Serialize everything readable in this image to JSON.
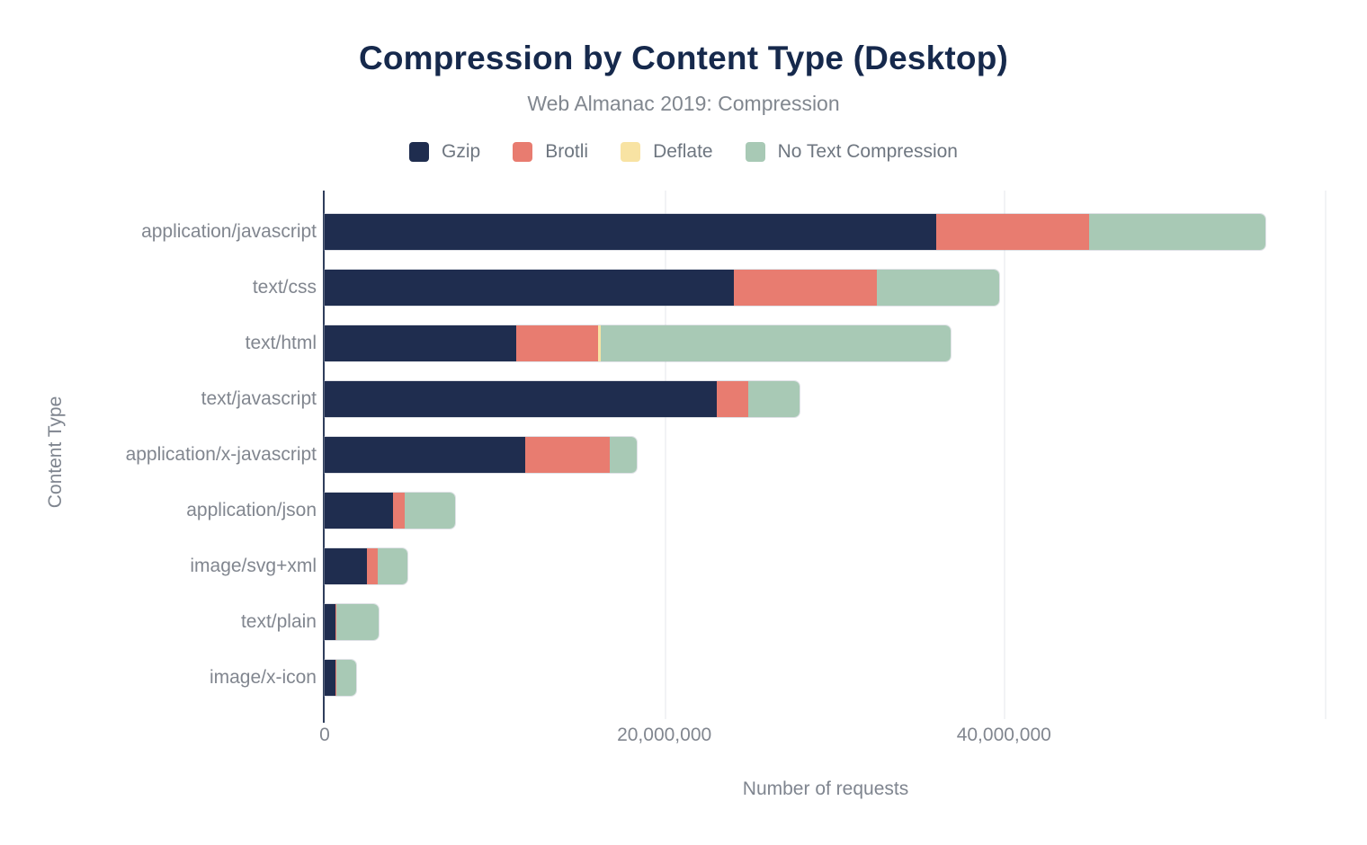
{
  "title": "Compression by Content Type (Desktop)",
  "subtitle": "Web Almanac 2019: Compression",
  "colors": {
    "title": "#16294c",
    "subtitle": "#81878f",
    "legend_label": "#6e7680",
    "category_label": "#81868f",
    "axis_tick_label": "#81868f",
    "axis_title": "#7f858f",
    "axis_line": "#2f3e5c",
    "gridline": "#f2f3f5",
    "background": "#ffffff",
    "gzip": "#1f2d4f",
    "brotli": "#e87c70",
    "deflate": "#f8e3a3",
    "no_text_compression": "#a8c9b5"
  },
  "chart_data": {
    "type": "bar",
    "orientation": "horizontal",
    "stacked": true,
    "title": "Compression by Content Type (Desktop)",
    "subtitle": "Web Almanac 2019: Compression",
    "xlabel": "Number of requests",
    "ylabel": "Content Type",
    "legend_position": "top",
    "grid": "vertical-faint",
    "categories": [
      "application/javascript",
      "text/css",
      "text/html",
      "text/javascript",
      "application/x-javascript",
      "application/json",
      "image/svg+xml",
      "text/plain",
      "image/x-icon"
    ],
    "series": [
      {
        "name": "Gzip",
        "color": "#1f2d4f",
        "values": [
          36000000,
          24100000,
          11300000,
          23100000,
          11800000,
          4000000,
          2500000,
          620000,
          620000
        ]
      },
      {
        "name": "Brotli",
        "color": "#e87c70",
        "values": [
          9000000,
          8400000,
          4800000,
          1850000,
          5000000,
          700000,
          600000,
          60000,
          60000
        ]
      },
      {
        "name": "Deflate",
        "color": "#f8e3a3",
        "values": [
          0,
          0,
          150000,
          0,
          0,
          0,
          0,
          0,
          0
        ]
      },
      {
        "name": "No Text Compression",
        "color": "#a8c9b5",
        "values": [
          10400000,
          7200000,
          20600000,
          3000000,
          1600000,
          3000000,
          1750000,
          2500000,
          1200000
        ]
      }
    ],
    "xlim": [
      0,
      59000000
    ],
    "x_ticks": [
      {
        "value": 0,
        "label": "0"
      },
      {
        "value": 20000000,
        "label": "20,000,000"
      },
      {
        "value": 40000000,
        "label": "40,000,000"
      }
    ]
  }
}
